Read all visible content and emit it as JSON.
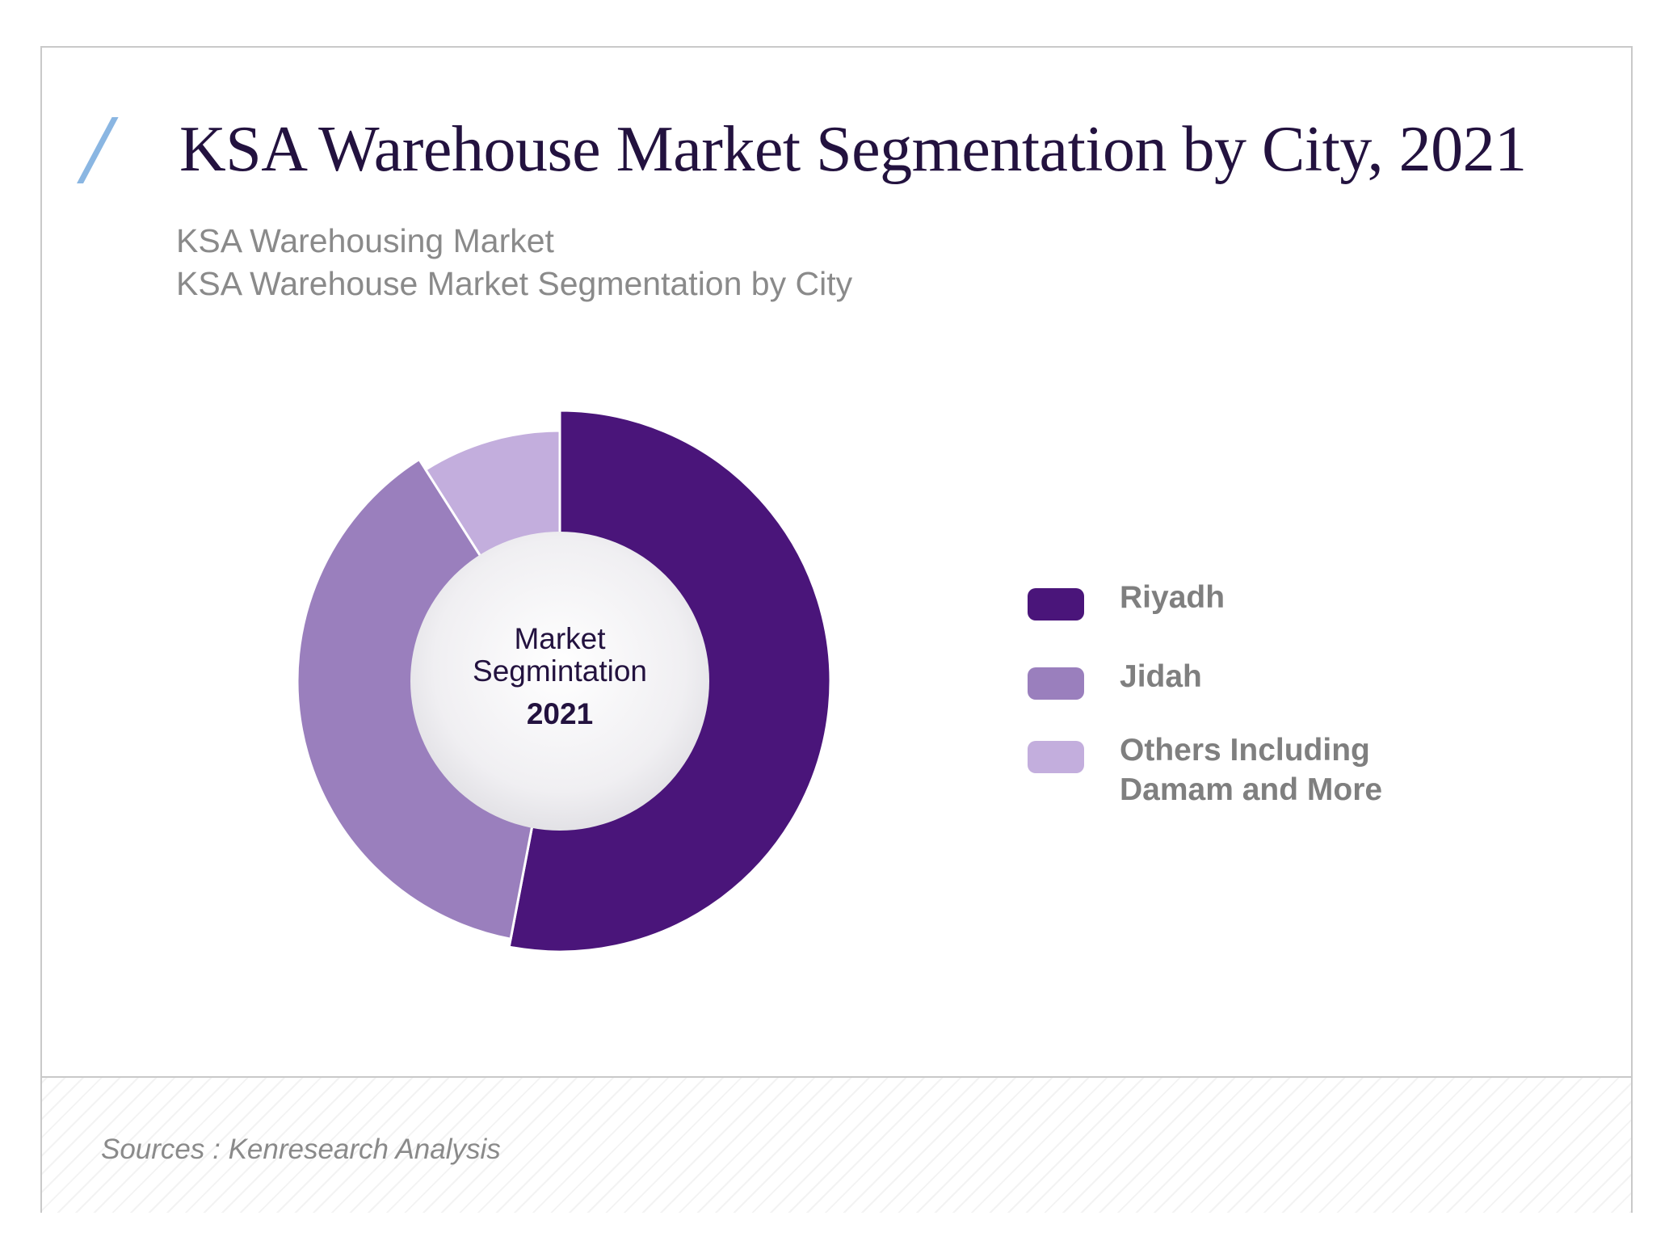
{
  "title": "KSA Warehouse Market Segmentation by City, 2021",
  "subtitle_line1": "KSA Warehousing Market",
  "subtitle_line2": "KSA Warehouse Market Segmentation by City",
  "source": "Sources : Kenresearch Analysis",
  "center_label": {
    "line1": "Market",
    "line2": "Segmintation",
    "year": "2021"
  },
  "chart_data": {
    "type": "pie",
    "variant": "donut",
    "categories": [
      "Riyadh",
      "Jidah",
      "Others Including Damam and More"
    ],
    "legend_labels": [
      [
        "Riyadh"
      ],
      [
        "Jidah"
      ],
      [
        "Others Including",
        "Damam and More"
      ]
    ],
    "values": [
      53,
      38,
      9
    ],
    "unit": "%",
    "colors": [
      "#4a157a",
      "#9a7fbd",
      "#c3aedd"
    ],
    "legend_position": "right",
    "start_angle_deg": 0,
    "direction": "clockwise"
  }
}
